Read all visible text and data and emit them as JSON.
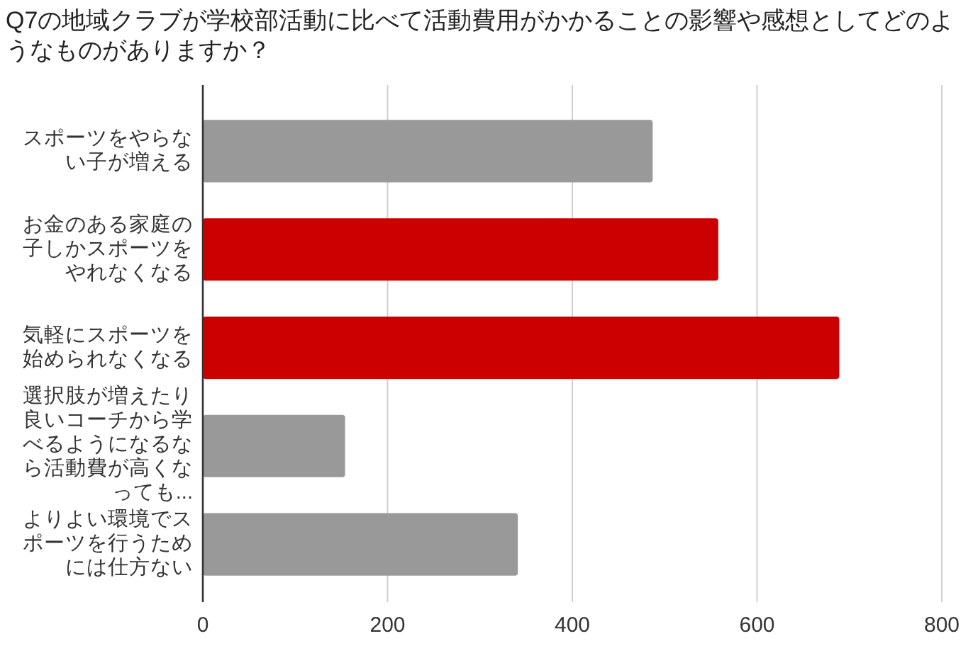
{
  "chart_data": {
    "type": "bar",
    "orientation": "horizontal",
    "title": "Q7の地域クラブが学校部活動に比べて活動費用がかかることの影響や感想としてどのようなものがありますか？",
    "categories": [
      "スポーツをやらない子が増える",
      "お金のある家庭の子しかスポーツをやれなくなる",
      "気軽にスポーツを始められなくなる",
      "選択肢が増えたり良いコーチから学べるようになるなら活動費が高くなっても...",
      "よりよい環境でスポーツを行うためには仕方ない"
    ],
    "values": [
      487,
      558,
      689,
      154,
      341
    ],
    "colors": [
      "#999999",
      "#cc0000",
      "#cc0000",
      "#999999",
      "#999999"
    ],
    "xlim": [
      0,
      800
    ],
    "xticks": [
      0,
      200,
      400,
      600,
      800
    ],
    "grid": "x"
  }
}
